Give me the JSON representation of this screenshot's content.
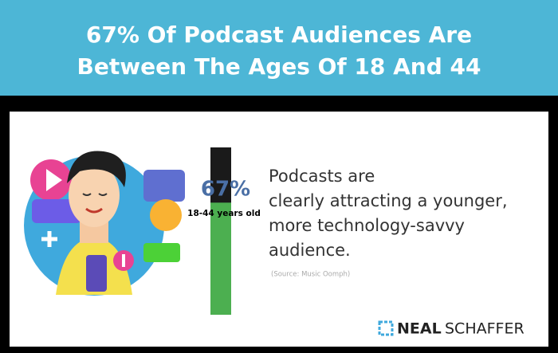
{
  "header": {
    "title_lines": [
      "67% Of Podcast Audiences Are",
      "Between The Ages Of 18 And 44"
    ]
  },
  "stat": {
    "value": 67,
    "value_label": "67%",
    "range": [
      0,
      100
    ],
    "caption": "18-44 years old",
    "color": "#4caf50"
  },
  "body": {
    "lines": [
      "Podcasts are",
      "clearly attracting a younger,",
      "more technology-savvy",
      "audience."
    ],
    "source": "(Source: Music Oomph)"
  },
  "brand": {
    "first": "NEAL",
    "second": "SCHAFFER"
  }
}
